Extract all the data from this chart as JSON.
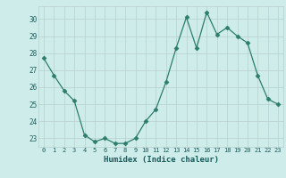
{
  "x": [
    0,
    1,
    2,
    3,
    4,
    5,
    6,
    7,
    8,
    9,
    10,
    11,
    12,
    13,
    14,
    15,
    16,
    17,
    18,
    19,
    20,
    21,
    22,
    23
  ],
  "y": [
    27.7,
    26.7,
    25.8,
    25.2,
    23.2,
    22.8,
    23.0,
    22.7,
    22.7,
    23.0,
    24.0,
    24.7,
    26.3,
    28.3,
    30.1,
    28.3,
    30.4,
    29.1,
    29.5,
    29.0,
    28.6,
    26.7,
    25.3,
    25.0
  ],
  "xlabel": "Humidex (Indice chaleur)",
  "ylim": [
    22.5,
    30.75
  ],
  "yticks": [
    23,
    24,
    25,
    26,
    27,
    28,
    29,
    30
  ],
  "xticks": [
    0,
    1,
    2,
    3,
    4,
    5,
    6,
    7,
    8,
    9,
    10,
    11,
    12,
    13,
    14,
    15,
    16,
    17,
    18,
    19,
    20,
    21,
    22,
    23
  ],
  "line_color": "#2d7d6c",
  "marker": "D",
  "marker_size": 2.5,
  "bg_color": "#ceecea",
  "grid_color": "#b8d0ce",
  "tick_label_color": "#1a5c5c",
  "xlabel_color": "#1a5c5c"
}
